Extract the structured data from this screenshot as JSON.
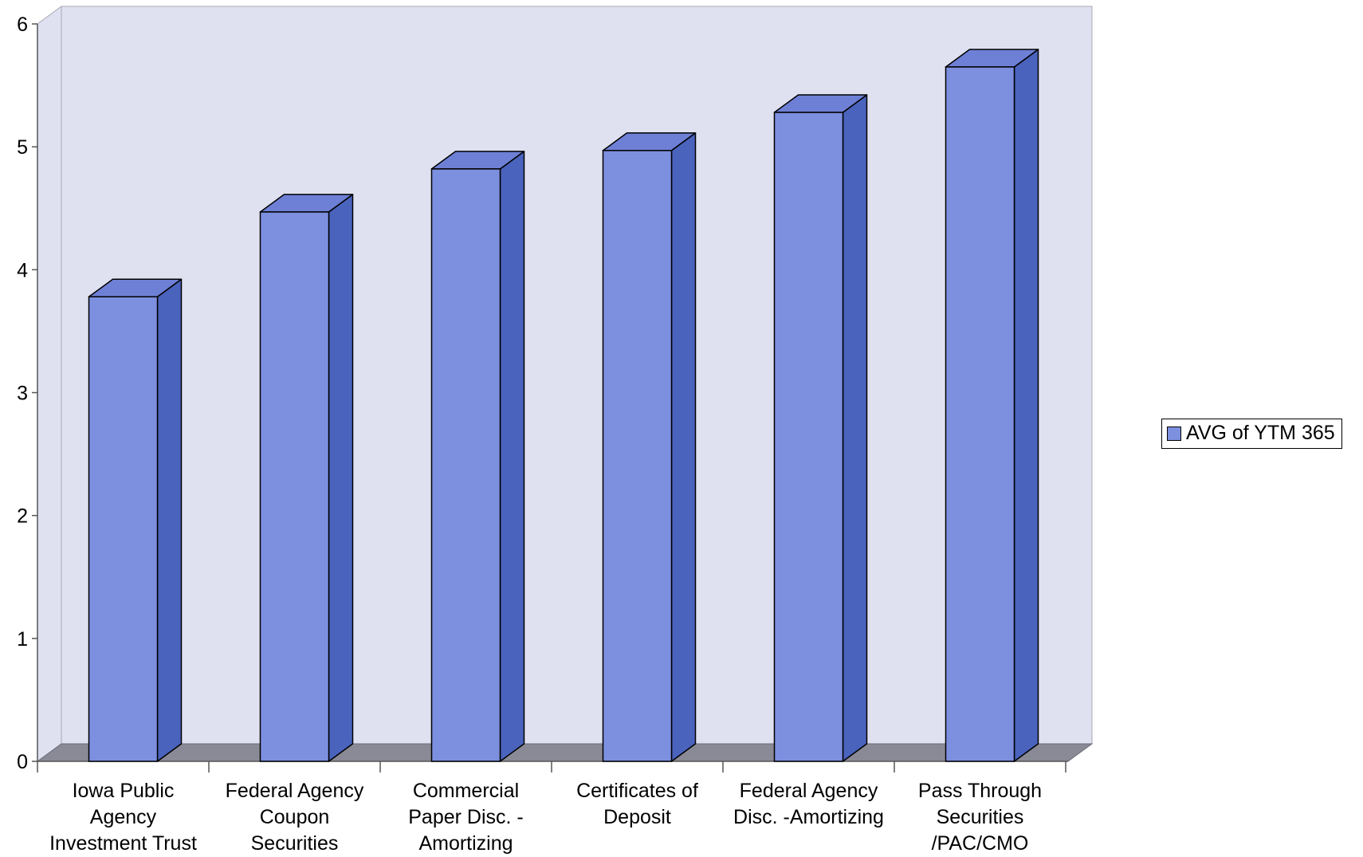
{
  "colors": {
    "bar_front": "#7d8fdf",
    "bar_side": "#4a63bd",
    "bar_top": "#6e80d6",
    "plot_wall": "#dfe1f1",
    "floor": "#8a8a96",
    "text": "#000000"
  },
  "chart_data": {
    "type": "bar",
    "categories": [
      [
        "Iowa Public",
        "Agency",
        "Investment Trust"
      ],
      [
        "Federal Agency",
        "Coupon",
        "Securities"
      ],
      [
        "Commercial",
        "Paper Disc. -",
        "Amortizing"
      ],
      [
        "Certificates of",
        "Deposit"
      ],
      [
        "Federal Agency",
        "Disc. -Amortizing"
      ],
      [
        "Pass Through",
        "Securities",
        "/PAC/CMO"
      ]
    ],
    "series": [
      {
        "name": "AVG of YTM 365",
        "values": [
          3.78,
          4.47,
          4.82,
          4.97,
          5.28,
          5.65
        ]
      }
    ],
    "yticks": [
      "0",
      "1",
      "2",
      "3",
      "4",
      "5",
      "6"
    ],
    "ylim": [
      0,
      6
    ],
    "title": "",
    "xlabel": "",
    "ylabel": "",
    "style": "3d-column",
    "grid": false,
    "legend_position": "right"
  }
}
